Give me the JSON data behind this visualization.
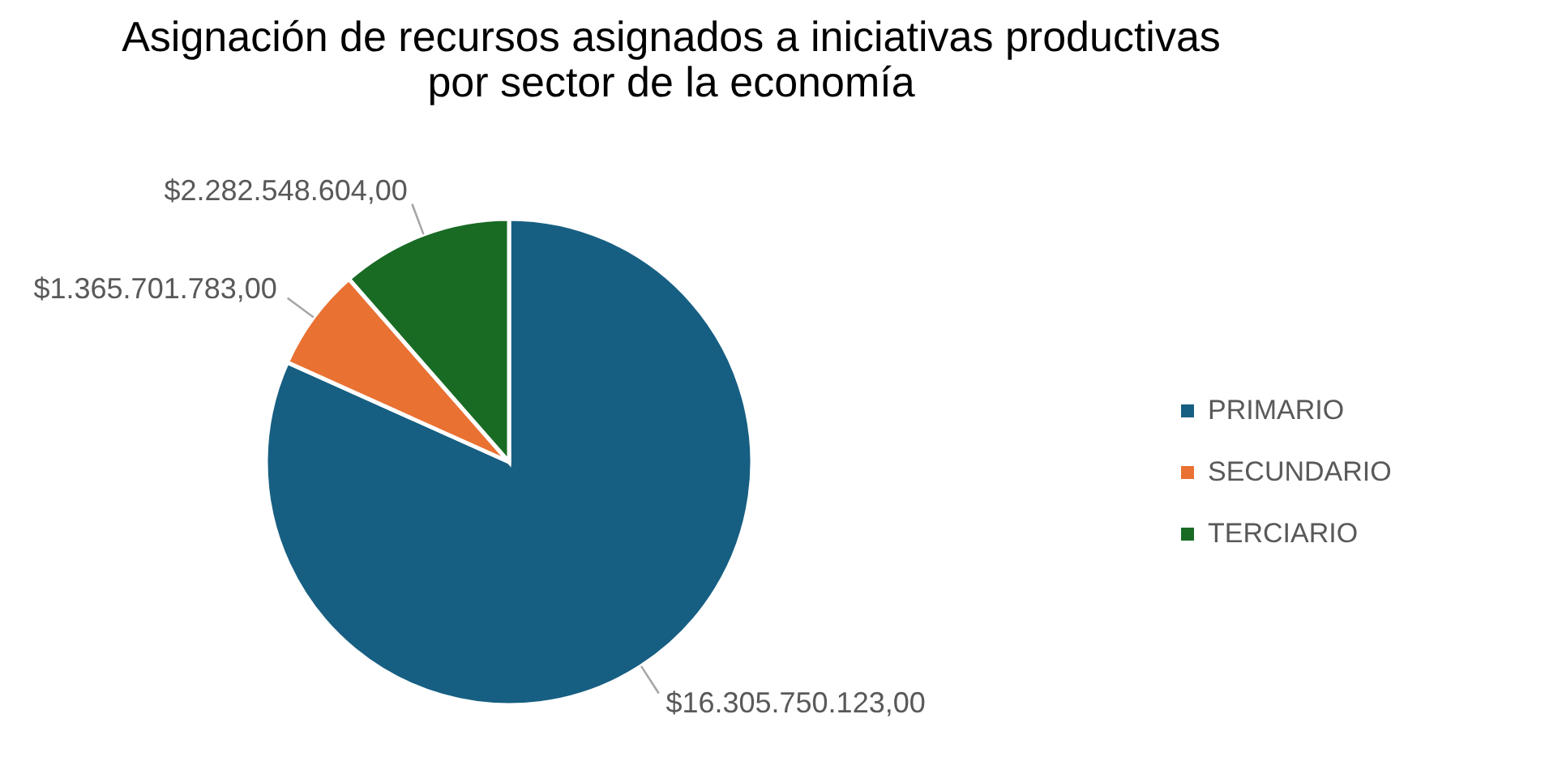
{
  "chart_data": {
    "type": "pie",
    "title": "Asignación de recursos asignados a iniciativas productivas\npor sector de la economía",
    "categories": [
      "PRIMARIO",
      "SECUNDARIO",
      "TERCIARIO"
    ],
    "values": [
      16305750123,
      1365701783,
      2282548604
    ],
    "colors": [
      "#175f82",
      "#e97132",
      "#196b24"
    ],
    "value_labels": [
      "$16.305.750.123,00",
      "$1.365.701.783,00",
      "$2.282.548.604,00"
    ],
    "legend": "right"
  }
}
